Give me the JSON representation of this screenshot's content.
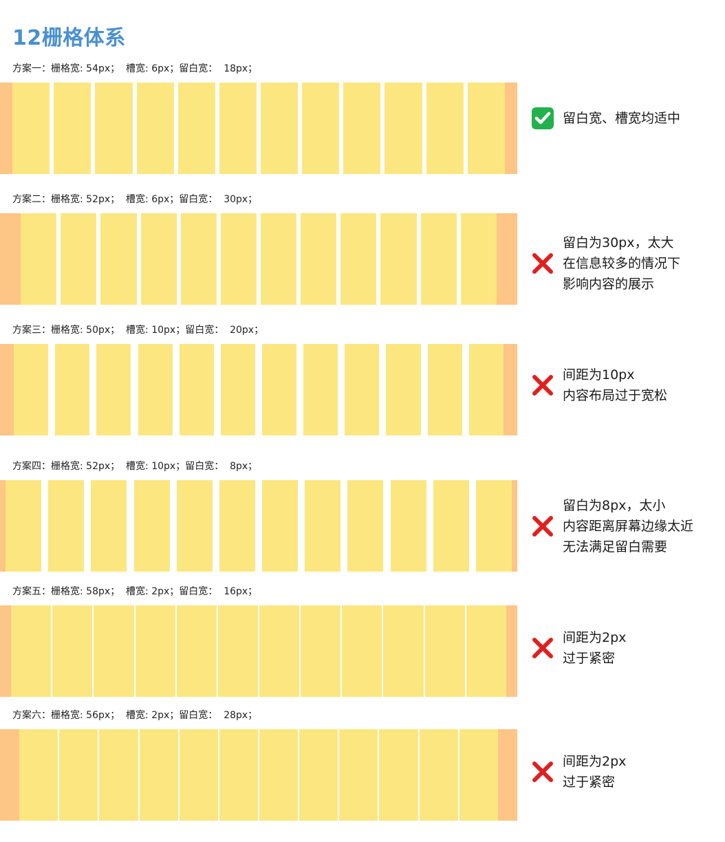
{
  "page_title": "12栅格体系",
  "colors": {
    "title": "#4a90d0",
    "column": "#fce680",
    "margin": "#fdc586",
    "check": "#22b14c",
    "cross": "#e01f1f"
  },
  "schemes": [
    {
      "caption": "方案一：栅格宽: 54px；  槽宽: 6px；留白宽：  18px；",
      "column_width": 54,
      "gutter": 6,
      "margin": 18,
      "verdict": "ok",
      "note_lines": [
        "留白宽、槽宽均适中"
      ]
    },
    {
      "caption": "方案二：栅格宽: 52px；  槽宽: 6px；留白宽：  30px；",
      "column_width": 52,
      "gutter": 6,
      "margin": 30,
      "verdict": "bad",
      "note_lines": [
        "留白为30px，太大",
        "在信息较多的情况下",
        "影响内容的展示"
      ]
    },
    {
      "caption": "方案三：栅格宽: 50px；  槽宽: 10px；留白宽：  20px；",
      "column_width": 50,
      "gutter": 10,
      "margin": 20,
      "verdict": "bad",
      "note_lines": [
        "间距为10px",
        "内容布局过于宽松"
      ]
    },
    {
      "caption": "方案四：栅格宽: 52px；  槽宽: 10px；留白宽：  8px；",
      "column_width": 52,
      "gutter": 10,
      "margin": 8,
      "verdict": "bad",
      "note_lines": [
        "留白为8px，太小",
        "内容距离屏幕边缘太近",
        "无法满足留白需要"
      ]
    },
    {
      "caption": "方案五：栅格宽: 58px；  槽宽: 2px；留白宽：  16px；",
      "column_width": 58,
      "gutter": 2,
      "margin": 16,
      "verdict": "bad",
      "note_lines": [
        "间距为2px",
        "过于紧密"
      ]
    },
    {
      "caption": "方案六：栅格宽: 56px；  槽宽: 2px；留白宽：  28px；",
      "column_width": 56,
      "gutter": 2,
      "margin": 28,
      "verdict": "bad",
      "note_lines": [
        "间距为2px",
        "过于紧密"
      ]
    }
  ]
}
